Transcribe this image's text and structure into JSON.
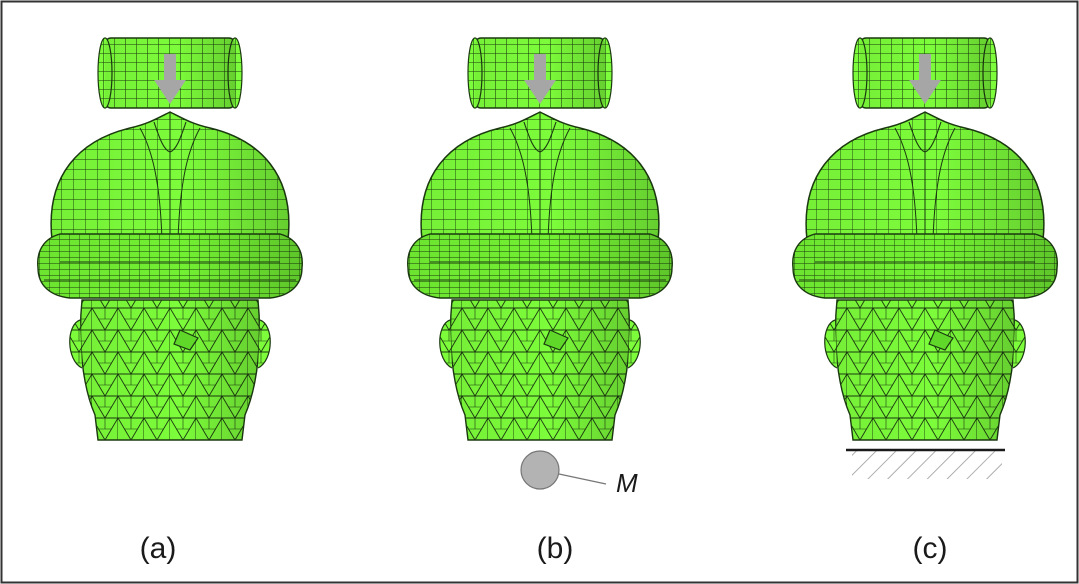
{
  "panels": [
    {
      "id": "a",
      "caption": "(a)",
      "support": "none"
    },
    {
      "id": "b",
      "caption": "(b)",
      "support": "mass"
    },
    {
      "id": "c",
      "caption": "(c)",
      "support": "fixed"
    }
  ],
  "mass_label": "M",
  "colors": {
    "mesh_fill": "#7CFC3A",
    "mesh_dark": "#4fcf1a",
    "mesh_line": "#1b3a10",
    "arrow": "#a6a6a6",
    "mass": "#b3b3b3",
    "border": "#333333"
  },
  "icons": [
    "impactor-cylinder-icon",
    "impact-arrow-icon",
    "helmet-icon",
    "headform-icon",
    "mass-ball-icon",
    "ground-hatch-icon"
  ]
}
